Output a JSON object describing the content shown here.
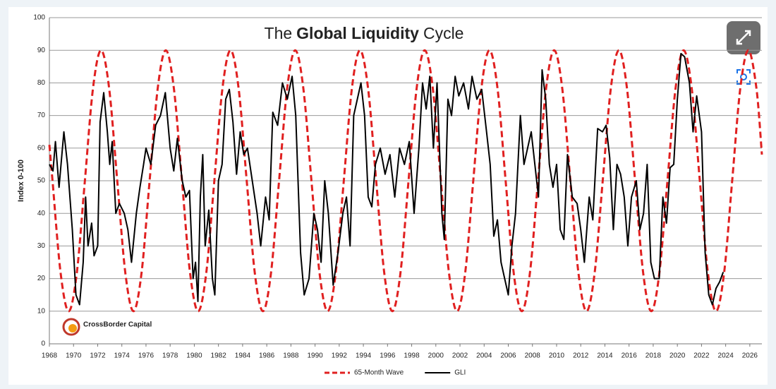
{
  "chart_data": {
    "type": "line",
    "title": [
      "The",
      "Global Liquidity",
      "Cycle"
    ],
    "y_label": "Index 0-100",
    "logo_text": "CrossBorder Capital",
    "xlim": [
      1968,
      2027
    ],
    "ylim": [
      0,
      100
    ],
    "xticks": [
      1968,
      1970,
      1972,
      1974,
      1976,
      1978,
      1980,
      1982,
      1984,
      1986,
      1988,
      1990,
      1992,
      1994,
      1996,
      1998,
      2000,
      2002,
      2004,
      2006,
      2008,
      2010,
      2012,
      2014,
      2016,
      2018,
      2020,
      2022,
      2024,
      2026
    ],
    "yticks": [
      0,
      10,
      20,
      30,
      40,
      50,
      60,
      70,
      80,
      90,
      100
    ],
    "grid": true,
    "legend": "bottom",
    "series": [
      {
        "name": "65-Month Wave",
        "color": "#e02020",
        "dashed": true,
        "x": [
          1968,
          1968.26,
          1968.93,
          1969.6,
          1970.27,
          1970.94,
          1971.61,
          1972.28,
          1972.95,
          1973.62,
          1974.29,
          1974.96,
          1975.63,
          1976.3,
          1976.97,
          1977.64,
          1978.31,
          1978.98,
          1979.65,
          1980.32,
          1980.99,
          1981.66,
          1982.33,
          1983,
          1983.67,
          1984.34,
          1985.01,
          1985.68,
          1986.35,
          1987.02,
          1987.69,
          1988.36,
          1989.03,
          1989.7,
          1990.37,
          1991.04,
          1991.71,
          1992.38,
          1993.05,
          1993.72,
          1994.39,
          1995.06,
          1995.73,
          1996.4,
          1997.07,
          1997.74,
          1998.41,
          1999.08,
          1999.75,
          2000.42,
          2001.09,
          2001.76,
          2002.43,
          2003.1,
          2003.77,
          2004.44,
          2005.11,
          2005.78,
          2006.45,
          2007.12,
          2007.79,
          2008.46,
          2009.13,
          2009.8,
          2010.47,
          2011.14,
          2011.81,
          2012.48,
          2013.15,
          2013.82,
          2014.49,
          2015.16,
          2015.83,
          2016.5,
          2017.17,
          2017.84,
          2018.51,
          2019.18,
          2019.85,
          2020.52,
          2021.19,
          2021.86,
          2022.53,
          2023.2,
          2023.87,
          2024.54,
          2025.21,
          2025.88,
          2026.55,
          2027
        ],
        "values": [
          61,
          50,
          21.7,
          10,
          21.7,
          50,
          78.3,
          90,
          78.3,
          50,
          21.7,
          10,
          21.7,
          50,
          78.3,
          90,
          78.3,
          50,
          21.7,
          10,
          21.7,
          50,
          78.3,
          90,
          78.3,
          50,
          21.7,
          10,
          21.7,
          50,
          78.3,
          90,
          78.3,
          50,
          21.7,
          10,
          21.7,
          50,
          78.3,
          90,
          78.3,
          50,
          21.7,
          10,
          21.7,
          50,
          78.3,
          90,
          78.3,
          50,
          21.7,
          10,
          21.7,
          50,
          78.3,
          90,
          78.3,
          50,
          21.7,
          10,
          21.7,
          50,
          78.3,
          90,
          78.3,
          50,
          21.7,
          10,
          21.7,
          50,
          78.3,
          90,
          78.3,
          50,
          21.7,
          10,
          21.7,
          50,
          78.3,
          90,
          78.3,
          50,
          21.7,
          10,
          21.7,
          50,
          78.3,
          90,
          78.3,
          58
        ]
      },
      {
        "name": "GLI",
        "color": "#000000",
        "dashed": false,
        "x": [
          1968,
          1968.3,
          1968.5,
          1968.8,
          1969.2,
          1969.5,
          1969.9,
          1970.2,
          1970.5,
          1970.8,
          1971,
          1971.2,
          1971.5,
          1971.7,
          1972,
          1972.2,
          1972.5,
          1972.8,
          1973,
          1973.2,
          1973.5,
          1973.8,
          1974.2,
          1974.5,
          1974.8,
          1975.2,
          1975.5,
          1975.8,
          1976,
          1976.4,
          1976.8,
          1977.2,
          1977.6,
          1978,
          1978.3,
          1978.6,
          1979,
          1979.3,
          1979.6,
          1979.9,
          1980.1,
          1980.3,
          1980.5,
          1980.7,
          1980.9,
          1981.2,
          1981.5,
          1981.7,
          1982,
          1982.3,
          1982.6,
          1982.9,
          1983.2,
          1983.5,
          1983.8,
          1984.1,
          1984.4,
          1984.8,
          1985.2,
          1985.5,
          1985.9,
          1986.2,
          1986.5,
          1986.9,
          1987.3,
          1987.7,
          1988.1,
          1988.4,
          1988.8,
          1989.1,
          1989.5,
          1989.9,
          1990.2,
          1990.5,
          1990.8,
          1991.1,
          1991.5,
          1991.9,
          1992.3,
          1992.6,
          1992.9,
          1993.2,
          1993.5,
          1993.8,
          1994.1,
          1994.4,
          1994.7,
          1995,
          1995.4,
          1995.8,
          1996.2,
          1996.6,
          1997,
          1997.4,
          1997.8,
          1998.2,
          1998.6,
          1998.9,
          1999.2,
          1999.5,
          1999.8,
          2000.1,
          2000.5,
          2000.7,
          2001,
          2001.3,
          2001.6,
          2001.9,
          2002.3,
          2002.7,
          2003,
          2003.4,
          2003.8,
          2004.2,
          2004.5,
          2004.8,
          2005.1,
          2005.4,
          2005.7,
          2006,
          2006.3,
          2006.6,
          2007,
          2007.3,
          2007.6,
          2007.9,
          2008.2,
          2008.5,
          2008.8,
          2009.1,
          2009.4,
          2009.7,
          2010,
          2010.3,
          2010.6,
          2010.9,
          2011.3,
          2011.7,
          2012,
          2012.3,
          2012.7,
          2013,
          2013.4,
          2013.8,
          2014.1,
          2014.4,
          2014.7,
          2015,
          2015.3,
          2015.6,
          2015.9,
          2016.2,
          2016.6,
          2016.9,
          2017.2,
          2017.5,
          2017.8,
          2018.1,
          2018.5,
          2018.8,
          2019.1,
          2019.4,
          2019.7,
          2020,
          2020.3,
          2020.6,
          2021,
          2021.3,
          2021.6,
          2022,
          2022.3,
          2022.6,
          2022.9,
          2023.2,
          2023.5,
          2023.8
        ],
        "values": [
          55,
          53,
          62,
          48,
          65,
          55,
          35,
          15,
          12,
          25,
          45,
          30,
          37,
          27,
          30,
          68,
          77,
          65,
          55,
          62,
          40,
          43,
          40,
          35,
          25,
          40,
          48,
          55,
          60,
          55,
          67,
          70,
          77,
          60,
          53,
          63,
          50,
          45,
          47,
          20,
          25,
          13,
          45,
          58,
          30,
          41,
          20,
          15,
          50,
          55,
          75,
          78,
          68,
          52,
          65,
          58,
          60,
          50,
          40,
          30,
          45,
          38,
          71,
          67,
          80,
          75,
          82,
          70,
          28,
          15,
          20,
          40,
          35,
          25,
          50,
          40,
          18,
          28,
          40,
          45,
          30,
          70,
          75,
          80,
          70,
          45,
          42,
          55,
          60,
          52,
          58,
          45,
          60,
          55,
          62,
          40,
          60,
          80,
          72,
          82,
          60,
          80,
          40,
          32,
          75,
          70,
          82,
          76,
          80,
          72,
          82,
          75,
          78,
          65,
          55,
          33,
          38,
          25,
          20,
          15,
          30,
          40,
          70,
          55,
          60,
          65,
          55,
          45,
          84,
          75,
          55,
          48,
          55,
          35,
          32,
          58,
          45,
          43,
          35,
          25,
          45,
          38,
          66,
          65,
          67,
          57,
          35,
          55,
          52,
          45,
          30,
          45,
          50,
          35,
          40,
          55,
          25,
          20,
          20,
          45,
          37,
          54,
          55,
          75,
          89,
          88,
          80,
          65,
          76,
          65,
          28,
          15,
          12,
          17,
          19,
          22
        ]
      }
    ]
  }
}
